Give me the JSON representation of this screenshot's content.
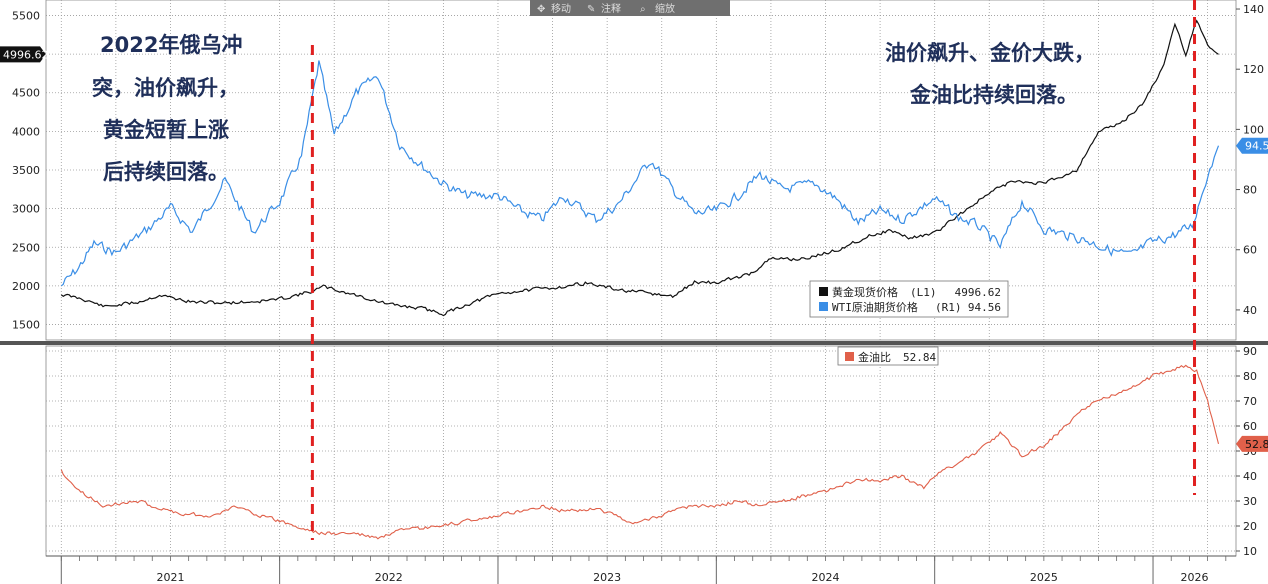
{
  "toolbar": {
    "items": [
      {
        "icon": "move-icon",
        "label": "移动"
      },
      {
        "icon": "pencil-icon",
        "label": "注释"
      },
      {
        "icon": "zoom-icon",
        "label": "缩放"
      }
    ]
  },
  "annotations": {
    "left": [
      "2022年俄乌冲",
      "突，油价飙升，",
      "黄金短暂上涨",
      "后持续回落。"
    ],
    "right": [
      "油价飙升、金价大跌，",
      "金油比持续回落。"
    ]
  },
  "colors": {
    "gold": "#111111",
    "wti": "#3a8ee6",
    "ratio": "#e0604a",
    "event_line": "#e02020"
  },
  "chart_data": [
    {
      "type": "line",
      "x_labels": [
        "2021",
        "2022",
        "2023",
        "2024",
        "2025",
        "2026"
      ],
      "yticks_left": [
        1500,
        2000,
        2500,
        3000,
        3500,
        4000,
        4500,
        5000,
        5500
      ],
      "yticks_right": [
        40,
        60,
        80,
        100,
        120,
        140
      ],
      "ylim_left": [
        1300,
        5700
      ],
      "ylim_right": [
        30,
        143
      ],
      "grid": true,
      "legend_position": "bottom-center",
      "series": [
        {
          "name": "黄金现货价格 (L1)",
          "legend_name": "黄金现货价格",
          "legend_axis": "(L1)",
          "axis": "left",
          "last": "4996.62",
          "points": [
            [
              2021.0,
              1890
            ],
            [
              2021.1,
              1830
            ],
            [
              2021.2,
              1730
            ],
            [
              2021.35,
              1790
            ],
            [
              2021.45,
              1880
            ],
            [
              2021.6,
              1790
            ],
            [
              2021.75,
              1780
            ],
            [
              2021.9,
              1800
            ],
            [
              2022.0,
              1830
            ],
            [
              2022.15,
              1930
            ],
            [
              2022.2,
              1990
            ],
            [
              2022.35,
              1880
            ],
            [
              2022.5,
              1760
            ],
            [
              2022.65,
              1710
            ],
            [
              2022.75,
              1640
            ],
            [
              2022.85,
              1750
            ],
            [
              2023.0,
              1900
            ],
            [
              2023.15,
              1950
            ],
            [
              2023.3,
              1990
            ],
            [
              2023.4,
              2040
            ],
            [
              2023.55,
              1950
            ],
            [
              2023.7,
              1900
            ],
            [
              2023.8,
              1860
            ],
            [
              2023.9,
              2050
            ],
            [
              2024.0,
              2040
            ],
            [
              2024.15,
              2150
            ],
            [
              2024.25,
              2350
            ],
            [
              2024.4,
              2350
            ],
            [
              2024.55,
              2460
            ],
            [
              2024.7,
              2650
            ],
            [
              2024.8,
              2720
            ],
            [
              2024.88,
              2620
            ],
            [
              2025.0,
              2680
            ],
            [
              2025.1,
              2900
            ],
            [
              2025.25,
              3200
            ],
            [
              2025.35,
              3350
            ],
            [
              2025.5,
              3330
            ],
            [
              2025.65,
              3500
            ],
            [
              2025.75,
              4000
            ],
            [
              2025.85,
              4100
            ],
            [
              2025.95,
              4350
            ],
            [
              2026.05,
              4850
            ],
            [
              2026.1,
              5400
            ],
            [
              2026.15,
              5000
            ],
            [
              2026.2,
              5450
            ],
            [
              2026.25,
              5100
            ],
            [
              2026.3,
              4996.62
            ]
          ]
        },
        {
          "name": "WTI原油期货价格 (R1)",
          "legend_name": "WTI原油期货价格",
          "legend_axis": "(R1)",
          "axis": "right",
          "last": "94.56",
          "points": [
            [
              2021.0,
              48
            ],
            [
              2021.08,
              54
            ],
            [
              2021.15,
              62
            ],
            [
              2021.25,
              59
            ],
            [
              2021.4,
              67
            ],
            [
              2021.5,
              74
            ],
            [
              2021.6,
              66
            ],
            [
              2021.75,
              83
            ],
            [
              2021.88,
              66
            ],
            [
              2022.0,
              76
            ],
            [
              2022.1,
              91
            ],
            [
              2022.18,
              122
            ],
            [
              2022.25,
              98
            ],
            [
              2022.35,
              112
            ],
            [
              2022.45,
              118
            ],
            [
              2022.55,
              95
            ],
            [
              2022.65,
              88
            ],
            [
              2022.75,
              82
            ],
            [
              2022.85,
              78
            ],
            [
              2023.0,
              78
            ],
            [
              2023.1,
              73
            ],
            [
              2023.2,
              70
            ],
            [
              2023.3,
              78
            ],
            [
              2023.45,
              70
            ],
            [
              2023.55,
              75
            ],
            [
              2023.7,
              90
            ],
            [
              2023.8,
              80
            ],
            [
              2023.9,
              72
            ],
            [
              2024.0,
              73
            ],
            [
              2024.1,
              78
            ],
            [
              2024.2,
              85
            ],
            [
              2024.3,
              80
            ],
            [
              2024.45,
              82
            ],
            [
              2024.55,
              77
            ],
            [
              2024.65,
              69
            ],
            [
              2024.75,
              73
            ],
            [
              2024.85,
              70
            ],
            [
              2025.0,
              77
            ],
            [
              2025.1,
              71
            ],
            [
              2025.2,
              68
            ],
            [
              2025.3,
              61
            ],
            [
              2025.4,
              76
            ],
            [
              2025.5,
              67
            ],
            [
              2025.6,
              65
            ],
            [
              2025.7,
              63
            ],
            [
              2025.8,
              60
            ],
            [
              2025.9,
              58
            ],
            [
              2025.98,
              62
            ],
            [
              2026.1,
              65
            ],
            [
              2026.18,
              68
            ],
            [
              2026.25,
              85
            ],
            [
              2026.3,
              94.56
            ]
          ]
        }
      ]
    },
    {
      "type": "line",
      "x_labels": [
        "2021",
        "2022",
        "2023",
        "2024",
        "2025",
        "2026"
      ],
      "yticks": [
        10,
        20,
        30,
        40,
        50,
        60,
        70,
        80,
        90
      ],
      "ylim": [
        8,
        92
      ],
      "grid": true,
      "legend_position": "top-center",
      "series": [
        {
          "name": "金油比",
          "last": "52.84",
          "points": [
            [
              2021.0,
              42
            ],
            [
              2021.08,
              34
            ],
            [
              2021.2,
              28
            ],
            [
              2021.35,
              30
            ],
            [
              2021.45,
              27
            ],
            [
              2021.55,
              25
            ],
            [
              2021.7,
              24
            ],
            [
              2021.8,
              28
            ],
            [
              2021.92,
              24
            ],
            [
              2022.0,
              22
            ],
            [
              2022.1,
              19
            ],
            [
              2022.2,
              17
            ],
            [
              2022.35,
              17
            ],
            [
              2022.45,
              15
            ],
            [
              2022.55,
              18
            ],
            [
              2022.65,
              19
            ],
            [
              2022.75,
              20
            ],
            [
              2022.85,
              22
            ],
            [
              2023.0,
              24
            ],
            [
              2023.1,
              26
            ],
            [
              2023.2,
              28
            ],
            [
              2023.3,
              26
            ],
            [
              2023.45,
              27
            ],
            [
              2023.55,
              24
            ],
            [
              2023.6,
              21
            ],
            [
              2023.7,
              23
            ],
            [
              2023.8,
              26
            ],
            [
              2023.9,
              28
            ],
            [
              2024.0,
              28
            ],
            [
              2024.1,
              30
            ],
            [
              2024.2,
              28
            ],
            [
              2024.3,
              30
            ],
            [
              2024.4,
              32
            ],
            [
              2024.55,
              35
            ],
            [
              2024.65,
              39
            ],
            [
              2024.75,
              38
            ],
            [
              2024.85,
              40
            ],
            [
              2024.95,
              35
            ],
            [
              2025.0,
              40
            ],
            [
              2025.1,
              45
            ],
            [
              2025.2,
              50
            ],
            [
              2025.3,
              57
            ],
            [
              2025.4,
              48
            ],
            [
              2025.5,
              52
            ],
            [
              2025.6,
              60
            ],
            [
              2025.7,
              68
            ],
            [
              2025.8,
              72
            ],
            [
              2025.9,
              75
            ],
            [
              2026.0,
              80
            ],
            [
              2026.1,
              83
            ],
            [
              2026.15,
              84
            ],
            [
              2026.2,
              82
            ],
            [
              2026.25,
              70
            ],
            [
              2026.3,
              52.84
            ]
          ]
        }
      ]
    }
  ]
}
